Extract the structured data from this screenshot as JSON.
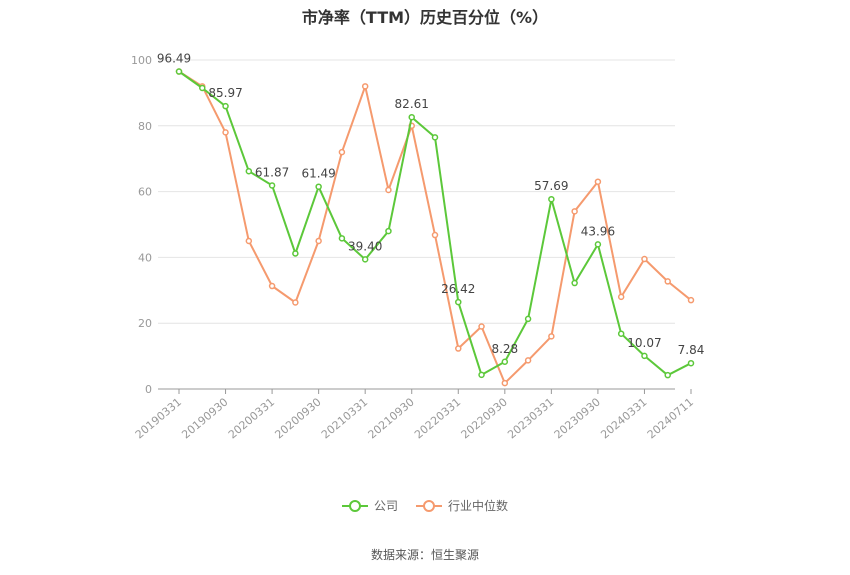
{
  "chart_data": {
    "type": "line",
    "title": "市净率（TTM）历史百分位（%）",
    "x": [
      "20190331",
      "20190630",
      "20190930",
      "20191231",
      "20200331",
      "20200630",
      "20200930",
      "20201231",
      "20210331",
      "20210630",
      "20210930",
      "20211231",
      "20220331",
      "20220630",
      "20220930",
      "20221231",
      "20230331",
      "20230630",
      "20230930",
      "20231231",
      "20240331",
      "20240630",
      "20240711"
    ],
    "x_tick_labels": [
      "20190331",
      "20190930",
      "20200331",
      "20200930",
      "20210331",
      "20210930",
      "20220331",
      "20220930",
      "20230331",
      "20230930",
      "20240331",
      "20240711"
    ],
    "ylim": [
      0,
      100
    ],
    "y_ticks": [
      0,
      20,
      40,
      60,
      80,
      100
    ],
    "grid": true,
    "legend_position": "bottom",
    "series": [
      {
        "name": "公司",
        "color": "#5cc83a",
        "values": [
          96.49,
          91.5,
          85.97,
          66.2,
          61.87,
          41.2,
          61.49,
          45.8,
          39.4,
          48.0,
          82.61,
          76.5,
          26.42,
          4.3,
          8.28,
          21.3,
          57.69,
          32.2,
          43.96,
          16.8,
          10.07,
          4.2,
          7.84
        ],
        "labels": {
          "0": "96.49",
          "2": "85.97",
          "4": "61.87",
          "6": "61.49",
          "8": "39.40",
          "10": "82.61",
          "12": "26.42",
          "14": "8.28",
          "16": "57.69",
          "18": "43.96",
          "20": "10.07",
          "22": "7.84"
        }
      },
      {
        "name": "行业中位数",
        "color": "#f59a6e",
        "values": [
          96.49,
          92.0,
          78.0,
          45.0,
          31.3,
          26.3,
          45.0,
          72.0,
          92.0,
          60.5,
          80.0,
          46.8,
          12.3,
          19.0,
          1.8,
          8.7,
          16.0,
          54.0,
          63.0,
          28.0,
          39.5,
          32.7,
          27.0
        ]
      }
    ]
  },
  "legend": [
    {
      "label": "公司",
      "color": "#5cc83a"
    },
    {
      "label": "行业中位数",
      "color": "#f59a6e"
    }
  ],
  "source": "数据来源：恒生聚源"
}
